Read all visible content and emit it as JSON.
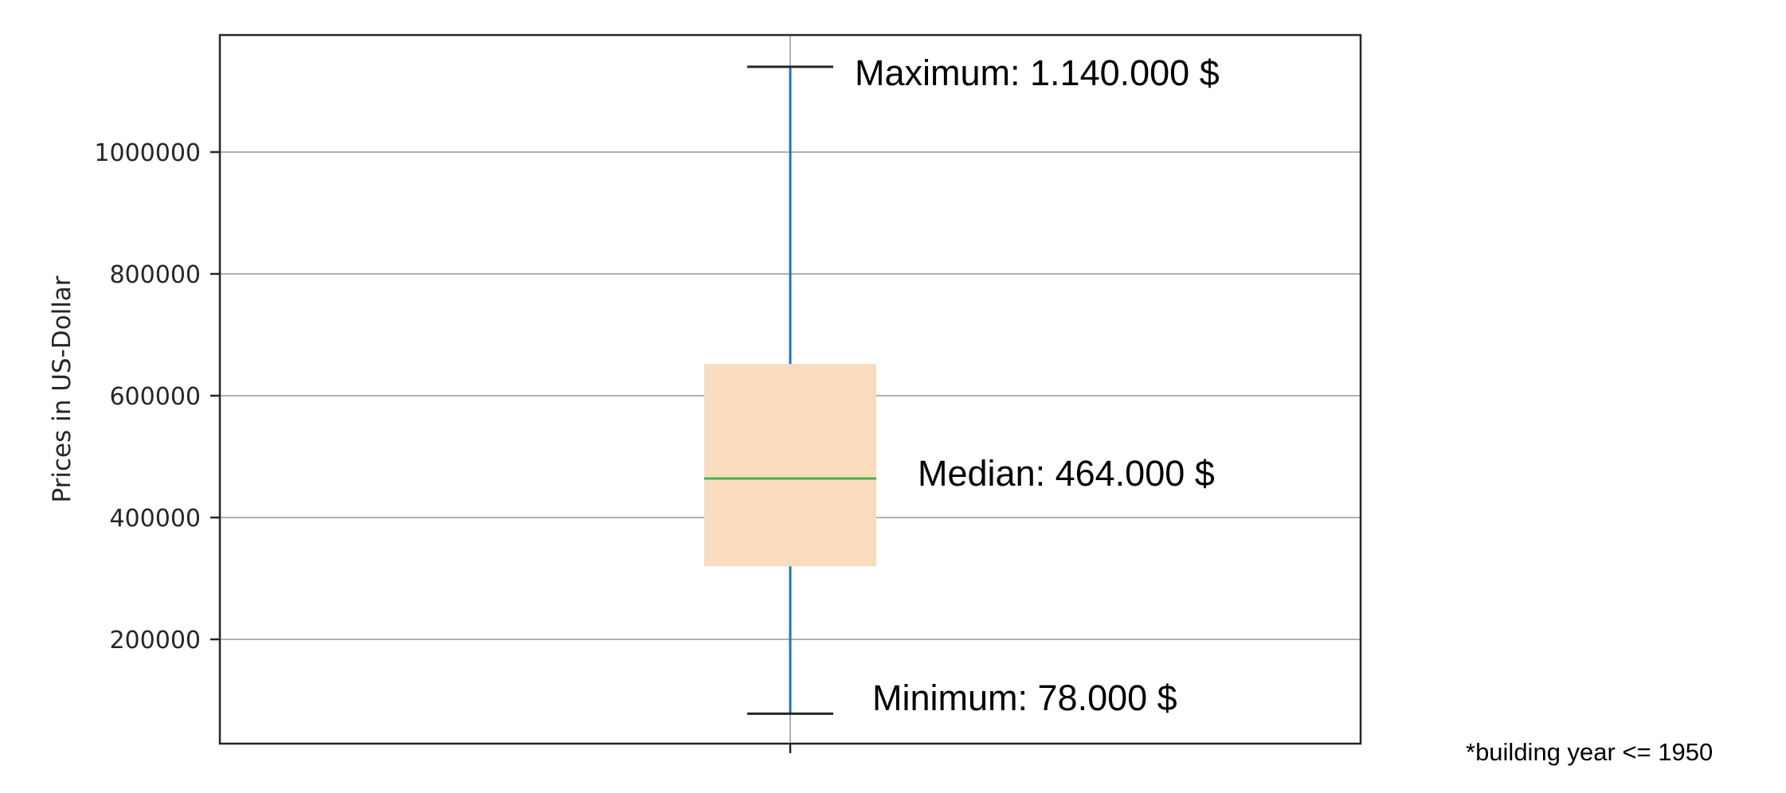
{
  "chart_data": {
    "type": "box",
    "ylabel": "Prices in US-Dollar",
    "ylim": [
      0,
      1200000
    ],
    "yticks": [
      200000,
      400000,
      600000,
      800000,
      1000000
    ],
    "ytick_labels": [
      "200000",
      "400000",
      "600000",
      "800000",
      "1000000"
    ],
    "grid": "horizontal",
    "box": {
      "min": 78000,
      "q1": 320000,
      "median": 464000,
      "q3": 652000,
      "max": 1140000
    },
    "annotations": {
      "maximum": "Maximum: 1.140.000 $",
      "median": "Median: 464.000 $",
      "minimum": "Minimum: 78.000 $"
    },
    "footnote": "*building year <= 1950",
    "colors": {
      "box_fill": "#f9dcbe",
      "median_line": "#4caf50",
      "whisker": "#1f77b4",
      "cap": "#262626",
      "grid": "#b0b0b0",
      "frame": "#262626"
    }
  }
}
